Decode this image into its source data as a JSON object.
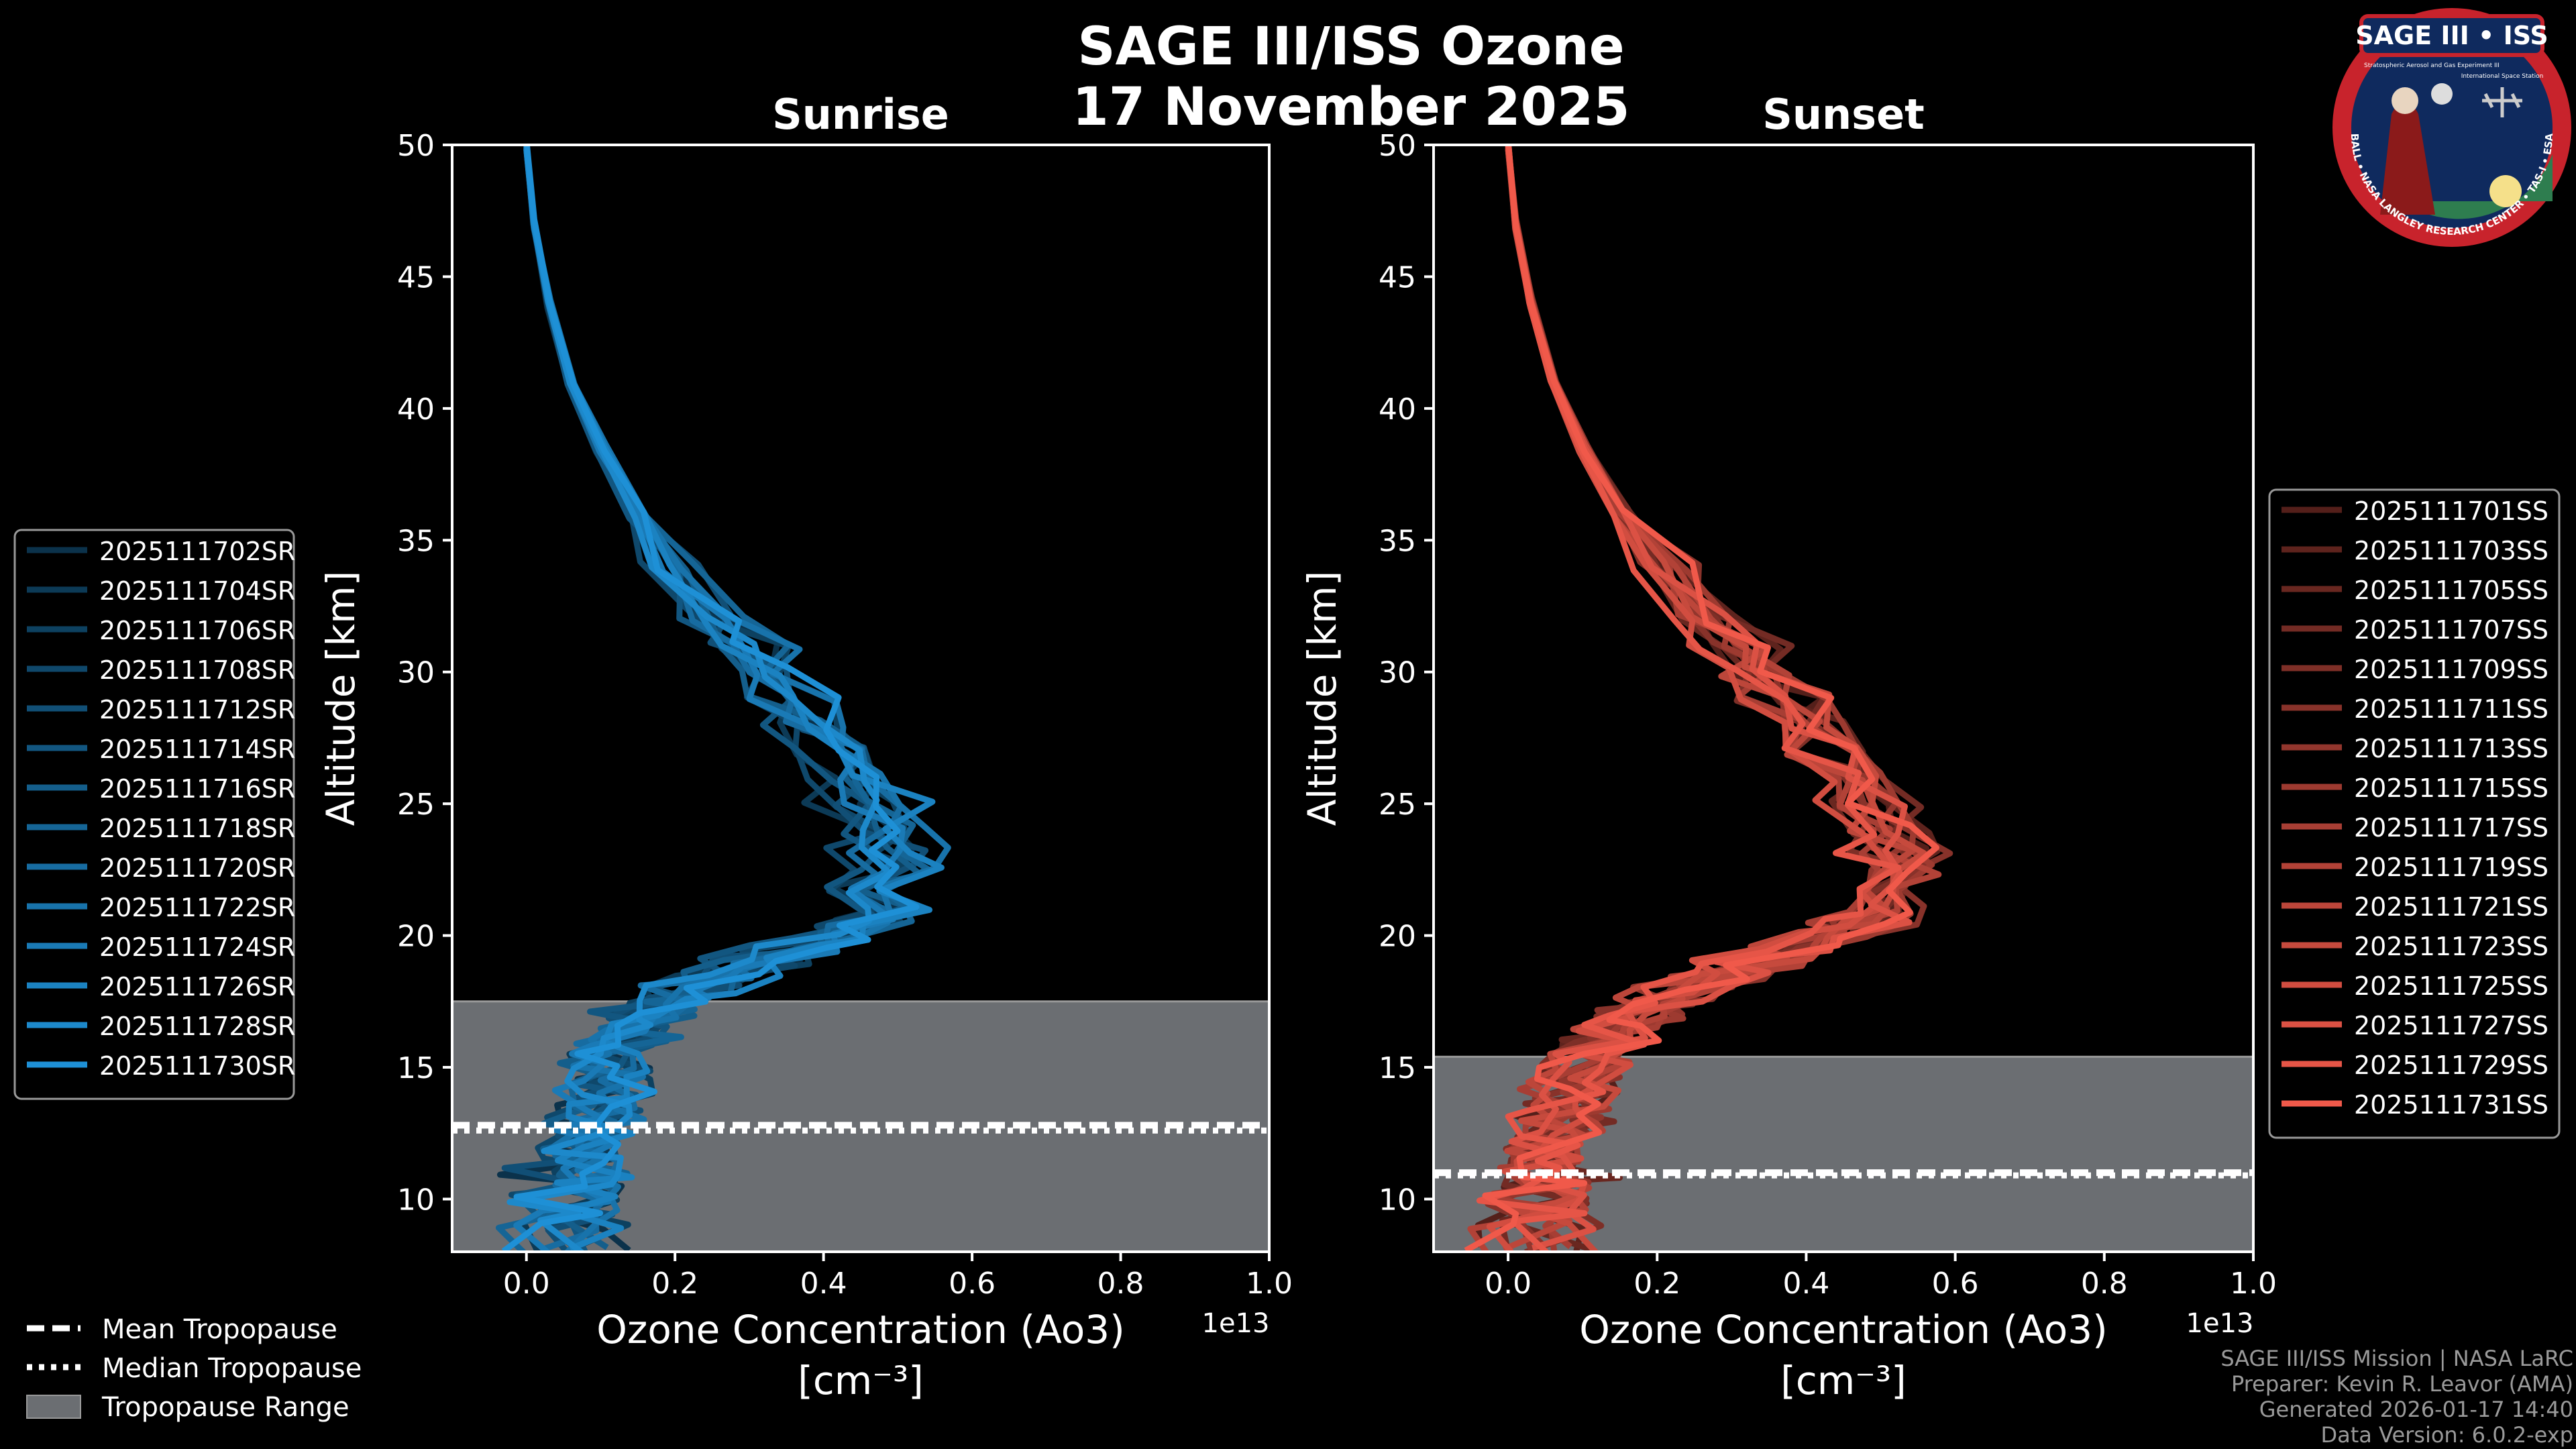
{
  "figure": {
    "title_line1": "SAGE III/ISS Ozone",
    "title_line2": "17 November 2025",
    "logo": {
      "name": "SAGE III • ISS",
      "subtitle": "Stratospheric Aerosol and Gas Experiment III",
      "subtitle2": "International Space Station",
      "ring_text": "BALL • NASA LANGLEY RESEARCH CENTER • TAS-I • ESA"
    },
    "footer": {
      "line1": "SAGE III/ISS Mission | NASA LaRC",
      "line2": "Preparer: Kevin R. Leavor (AMA)",
      "line3": "Generated 2026-01-17 14:40",
      "line4": "Data Version: 6.0.2-exp"
    },
    "bottom_legend": {
      "mean": "Mean Tropopause",
      "median": "Median Tropopause",
      "range": "Tropopause Range"
    }
  },
  "chart_data": [
    {
      "type": "line",
      "title": "Sunrise",
      "xlabel_line1": "Ozone Concentration (Ao3)",
      "xlabel_line2": "[cm⁻³]",
      "ylabel": "Altitude [km]",
      "xlim": [
        -0.1,
        1.0
      ],
      "ylim": [
        8,
        50
      ],
      "x_scale_label": "1e13",
      "x_ticks": [
        "0.0",
        "0.2",
        "0.4",
        "0.6",
        "0.8",
        "1.0"
      ],
      "y_ticks": [
        "10",
        "15",
        "20",
        "25",
        "30",
        "35",
        "40",
        "45",
        "50"
      ],
      "tropopause": {
        "range_bottom": 8,
        "range_top": 17.5,
        "mean": 12.8,
        "median": 12.6
      },
      "series_color": "#1e90d6",
      "series": [
        {
          "name": "2025111702SR"
        },
        {
          "name": "2025111704SR"
        },
        {
          "name": "2025111706SR"
        },
        {
          "name": "2025111708SR"
        },
        {
          "name": "2025111712SR"
        },
        {
          "name": "2025111714SR"
        },
        {
          "name": "2025111716SR"
        },
        {
          "name": "2025111718SR"
        },
        {
          "name": "2025111720SR"
        },
        {
          "name": "2025111722SR"
        },
        {
          "name": "2025111724SR"
        },
        {
          "name": "2025111726SR"
        },
        {
          "name": "2025111728SR"
        },
        {
          "name": "2025111730SR"
        }
      ],
      "profile": [
        [
          0.0,
          50
        ],
        [
          0.01,
          47
        ],
        [
          0.03,
          44
        ],
        [
          0.06,
          41
        ],
        [
          0.1,
          38.5
        ],
        [
          0.15,
          36
        ],
        [
          0.2,
          34
        ],
        [
          0.26,
          32
        ],
        [
          0.32,
          30
        ],
        [
          0.38,
          28
        ],
        [
          0.44,
          26
        ],
        [
          0.48,
          24
        ],
        [
          0.5,
          22.5
        ],
        [
          0.49,
          21
        ],
        [
          0.42,
          20
        ],
        [
          0.32,
          19
        ],
        [
          0.22,
          18
        ],
        [
          0.16,
          17
        ],
        [
          0.13,
          16
        ],
        [
          0.11,
          15
        ],
        [
          0.1,
          14
        ],
        [
          0.09,
          13
        ],
        [
          0.08,
          12
        ],
        [
          0.07,
          11
        ],
        [
          0.07,
          10
        ],
        [
          0.06,
          9
        ],
        [
          0.06,
          8
        ]
      ]
    },
    {
      "type": "line",
      "title": "Sunset",
      "xlabel_line1": "Ozone Concentration (Ao3)",
      "xlabel_line2": "[cm⁻³]",
      "ylabel": "Altitude [km]",
      "xlim": [
        -0.1,
        1.0
      ],
      "ylim": [
        8,
        50
      ],
      "x_scale_label": "1e13",
      "x_ticks": [
        "0.0",
        "0.2",
        "0.4",
        "0.6",
        "0.8",
        "1.0"
      ],
      "y_ticks": [
        "10",
        "15",
        "20",
        "25",
        "30",
        "35",
        "40",
        "45",
        "50"
      ],
      "tropopause": {
        "range_bottom": 8,
        "range_top": 15.4,
        "mean": 11.0,
        "median": 10.9
      },
      "series_color": "#f0594a",
      "series": [
        {
          "name": "2025111701SS"
        },
        {
          "name": "2025111703SS"
        },
        {
          "name": "2025111705SS"
        },
        {
          "name": "2025111707SS"
        },
        {
          "name": "2025111709SS"
        },
        {
          "name": "2025111711SS"
        },
        {
          "name": "2025111713SS"
        },
        {
          "name": "2025111715SS"
        },
        {
          "name": "2025111717SS"
        },
        {
          "name": "2025111719SS"
        },
        {
          "name": "2025111721SS"
        },
        {
          "name": "2025111723SS"
        },
        {
          "name": "2025111725SS"
        },
        {
          "name": "2025111727SS"
        },
        {
          "name": "2025111729SS"
        },
        {
          "name": "2025111731SS"
        }
      ],
      "profile": [
        [
          0.0,
          50
        ],
        [
          0.01,
          47
        ],
        [
          0.03,
          44
        ],
        [
          0.06,
          41
        ],
        [
          0.1,
          38.5
        ],
        [
          0.15,
          36
        ],
        [
          0.21,
          34
        ],
        [
          0.27,
          32
        ],
        [
          0.33,
          30
        ],
        [
          0.4,
          28
        ],
        [
          0.46,
          26
        ],
        [
          0.5,
          24
        ],
        [
          0.52,
          22.5
        ],
        [
          0.5,
          21
        ],
        [
          0.43,
          20
        ],
        [
          0.33,
          19
        ],
        [
          0.24,
          18
        ],
        [
          0.17,
          17
        ],
        [
          0.13,
          16
        ],
        [
          0.1,
          15
        ],
        [
          0.08,
          14
        ],
        [
          0.07,
          13
        ],
        [
          0.06,
          12
        ],
        [
          0.05,
          11
        ],
        [
          0.05,
          10
        ],
        [
          0.04,
          9
        ],
        [
          0.04,
          8
        ]
      ]
    }
  ]
}
